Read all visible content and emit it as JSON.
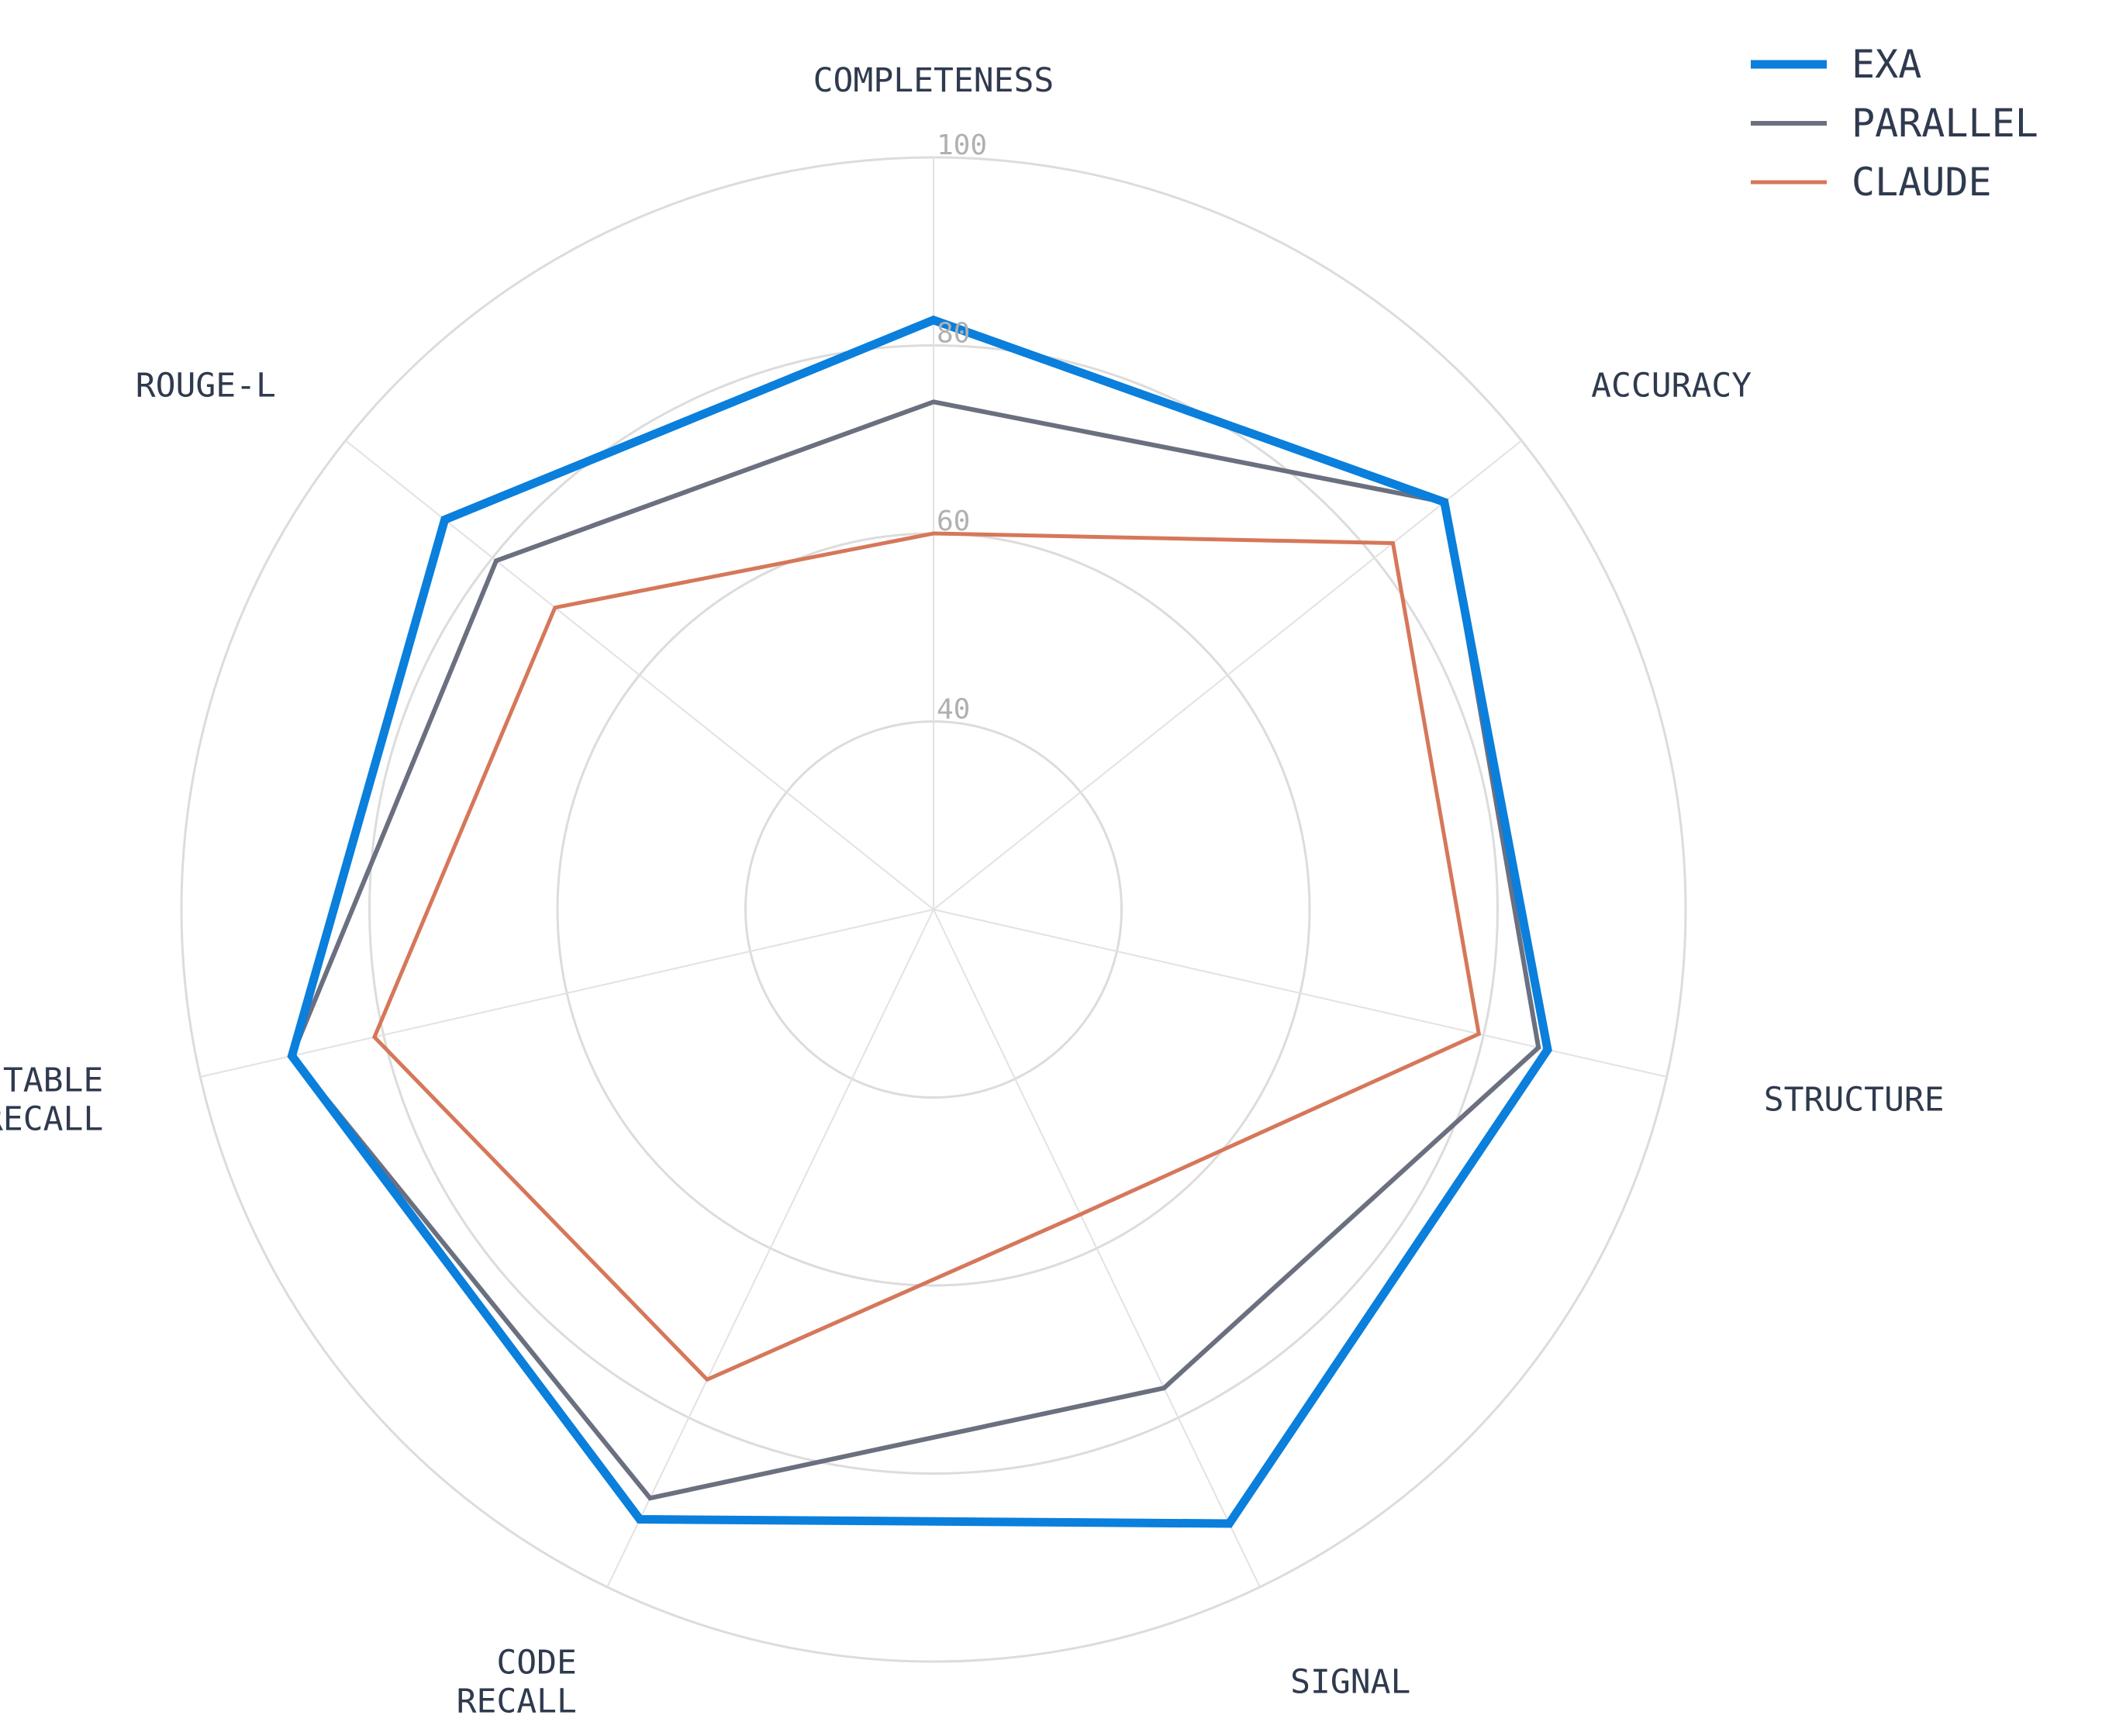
{
  "chart_data": {
    "type": "radar",
    "axes": [
      {
        "key": "completeness",
        "lines": [
          "COMPLETENESS"
        ]
      },
      {
        "key": "accuracy",
        "lines": [
          "ACCURACY"
        ]
      },
      {
        "key": "structure",
        "lines": [
          "STRUCTURE"
        ]
      },
      {
        "key": "signal",
        "lines": [
          "SIGNAL"
        ]
      },
      {
        "key": "code_recall",
        "lines": [
          "CODE",
          "RECALL"
        ]
      },
      {
        "key": "table_recall",
        "lines": [
          "TABLE",
          "RECALL"
        ]
      },
      {
        "key": "rouge_l",
        "lines": [
          "ROUGE-L"
        ]
      }
    ],
    "r_range": [
      20,
      100
    ],
    "r_ticks": [
      40,
      60,
      80,
      100
    ],
    "gridlines": true,
    "legend_position": "top-right",
    "series": [
      {
        "name": "EXA",
        "color": "#0a7fdc",
        "values": [
          82.7,
          89.5,
          87.0,
          92.5,
          92.0,
          90.0,
          86.5
        ]
      },
      {
        "name": "PARALLEL",
        "color": "#6b7080",
        "values": [
          74.0,
          89.5,
          86.0,
          76.5,
          89.5,
          90.0,
          79.5
        ]
      },
      {
        "name": "CLAUDE",
        "color": "#d6775a",
        "values": [
          60.0,
          82.5,
          79.5,
          56.0,
          75.5,
          81.0,
          71.5
        ]
      }
    ]
  }
}
